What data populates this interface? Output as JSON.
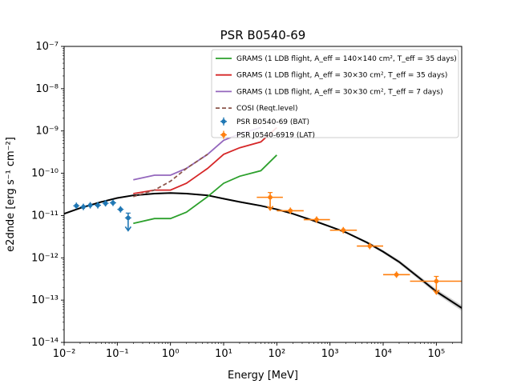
{
  "chart_data": {
    "type": "scatter",
    "title": "PSR B0540-69",
    "xlabel": "Energy [MeV]",
    "ylabel": "e2dnde [erg s⁻¹ cm⁻²]",
    "xscale": "log",
    "yscale": "log",
    "xlim": [
      0.01,
      300000
    ],
    "ylim": [
      1e-14,
      1e-07
    ],
    "x_ticks": [
      "10⁻²",
      "10⁻¹",
      "10⁰",
      "10¹",
      "10²",
      "10³",
      "10⁴",
      "10⁵"
    ],
    "y_ticks": [
      "10⁻¹⁴",
      "10⁻¹³",
      "10⁻¹²",
      "10⁻¹¹",
      "10⁻¹⁰",
      "10⁻⁹",
      "10⁻⁸",
      "10⁻⁷"
    ],
    "legend_position": "top-right",
    "legend": [
      "GRAMS (1 LDB flight, A_eff = 140×140 cm², T_eff = 35 days)",
      "GRAMS (1 LDB flight, A_eff = 30×30 cm², T_eff = 35 days)",
      "GRAMS (1 LDB flight, A_eff = 30×30 cm², T_eff = 7 days)",
      "COSI (Reqt.level)",
      "PSR B0540-69 (BAT)",
      "PSR J0540-6919 (LAT)"
    ],
    "model_curve": {
      "color": "#000000",
      "x": [
        0.01,
        0.02,
        0.05,
        0.1,
        0.2,
        0.5,
        1,
        2,
        5,
        10,
        20,
        50,
        100,
        200,
        500,
        1000,
        2000,
        5000,
        10000,
        20000,
        50000,
        100000,
        300000
      ],
      "y": [
        1.1e-11,
        1.5e-11,
        2.1e-11,
        2.6e-11,
        3e-11,
        3.3e-11,
        3.4e-11,
        3.3e-11,
        3e-11,
        2.5e-11,
        2.1e-11,
        1.7e-11,
        1.4e-11,
        1.1e-11,
        7.5e-12,
        5.5e-12,
        4e-12,
        2.3e-12,
        1.4e-12,
        8e-13,
        3.2e-13,
        1.6e-13,
        6.5e-14
      ]
    },
    "series": [
      {
        "name": "GRAMS (1 LDB flight, A_eff = 140×140 cm², T_eff = 35 days)",
        "kind": "line",
        "color": "#2ca02c",
        "x": [
          0.2,
          0.5,
          1,
          2,
          5,
          10,
          20,
          50,
          100
        ],
        "y": [
          6.5e-12,
          8.5e-12,
          8.5e-12,
          1.2e-11,
          2.8e-11,
          5.8e-11,
          8.5e-11,
          1.15e-10,
          2.7e-10
        ]
      },
      {
        "name": "GRAMS (1 LDB flight, A_eff = 30×30 cm², T_eff = 35 days)",
        "kind": "line",
        "color": "#d62728",
        "x": [
          0.2,
          0.5,
          1,
          2,
          5,
          10,
          20,
          50,
          100
        ],
        "y": [
          3.3e-11,
          4e-11,
          4e-11,
          5.8e-11,
          1.3e-10,
          2.8e-10,
          4e-10,
          5.5e-10,
          1.2e-09
        ]
      },
      {
        "name": "GRAMS (1 LDB flight, A_eff = 30×30 cm², T_eff = 7 days)",
        "kind": "line",
        "color": "#9467bd",
        "x": [
          0.2,
          0.5,
          1,
          2,
          5,
          10,
          20,
          50
        ],
        "y": [
          7e-11,
          9e-11,
          9e-11,
          1.3e-10,
          2.8e-10,
          6e-10,
          8.5e-10,
          1.2e-09
        ]
      },
      {
        "name": "COSI (Reqt.level)",
        "kind": "dashed",
        "color": "#8c564b",
        "x": [
          0.2,
          0.5,
          1,
          2,
          5
        ],
        "y": [
          2.8e-11,
          4e-11,
          6.5e-11,
          1.3e-10,
          2.8e-10
        ]
      },
      {
        "name": "PSR B0540-69 (BAT)",
        "kind": "errorbar",
        "color": "#1f77b4",
        "points": [
          {
            "x": 0.017,
            "y": 1.7e-11,
            "ul": false
          },
          {
            "x": 0.023,
            "y": 1.6e-11,
            "ul": false
          },
          {
            "x": 0.031,
            "y": 1.75e-11,
            "ul": false
          },
          {
            "x": 0.043,
            "y": 1.75e-11,
            "ul": false
          },
          {
            "x": 0.06,
            "y": 1.95e-11,
            "ul": false
          },
          {
            "x": 0.083,
            "y": 2e-11,
            "ul": false
          },
          {
            "x": 0.115,
            "y": 1.4e-11,
            "ul": false
          },
          {
            "x": 0.16,
            "y": 8.8e-12,
            "ul": true
          }
        ]
      },
      {
        "name": "PSR J0540-6919 (LAT)",
        "kind": "errorbar",
        "color": "#ff7f0e",
        "points": [
          {
            "x": 75,
            "y": 2.7e-11,
            "xlo": 42,
            "xhi": 130,
            "ul": true
          },
          {
            "x": 180,
            "y": 1.3e-11,
            "xlo": 100,
            "xhi": 320,
            "ul": false
          },
          {
            "x": 560,
            "y": 8e-12,
            "xlo": 320,
            "xhi": 1000,
            "ul": false
          },
          {
            "x": 1780,
            "y": 4.5e-12,
            "xlo": 1000,
            "xhi": 3200,
            "ul": false
          },
          {
            "x": 5600,
            "y": 1.9e-12,
            "xlo": 3200,
            "xhi": 10000,
            "ul": false
          },
          {
            "x": 17800,
            "y": 4e-13,
            "xlo": 10000,
            "xhi": 32000,
            "ul": false
          },
          {
            "x": 100000,
            "y": 2.8e-13,
            "xlo": 32000,
            "xhi": 300000,
            "ul": true
          }
        ]
      }
    ]
  }
}
